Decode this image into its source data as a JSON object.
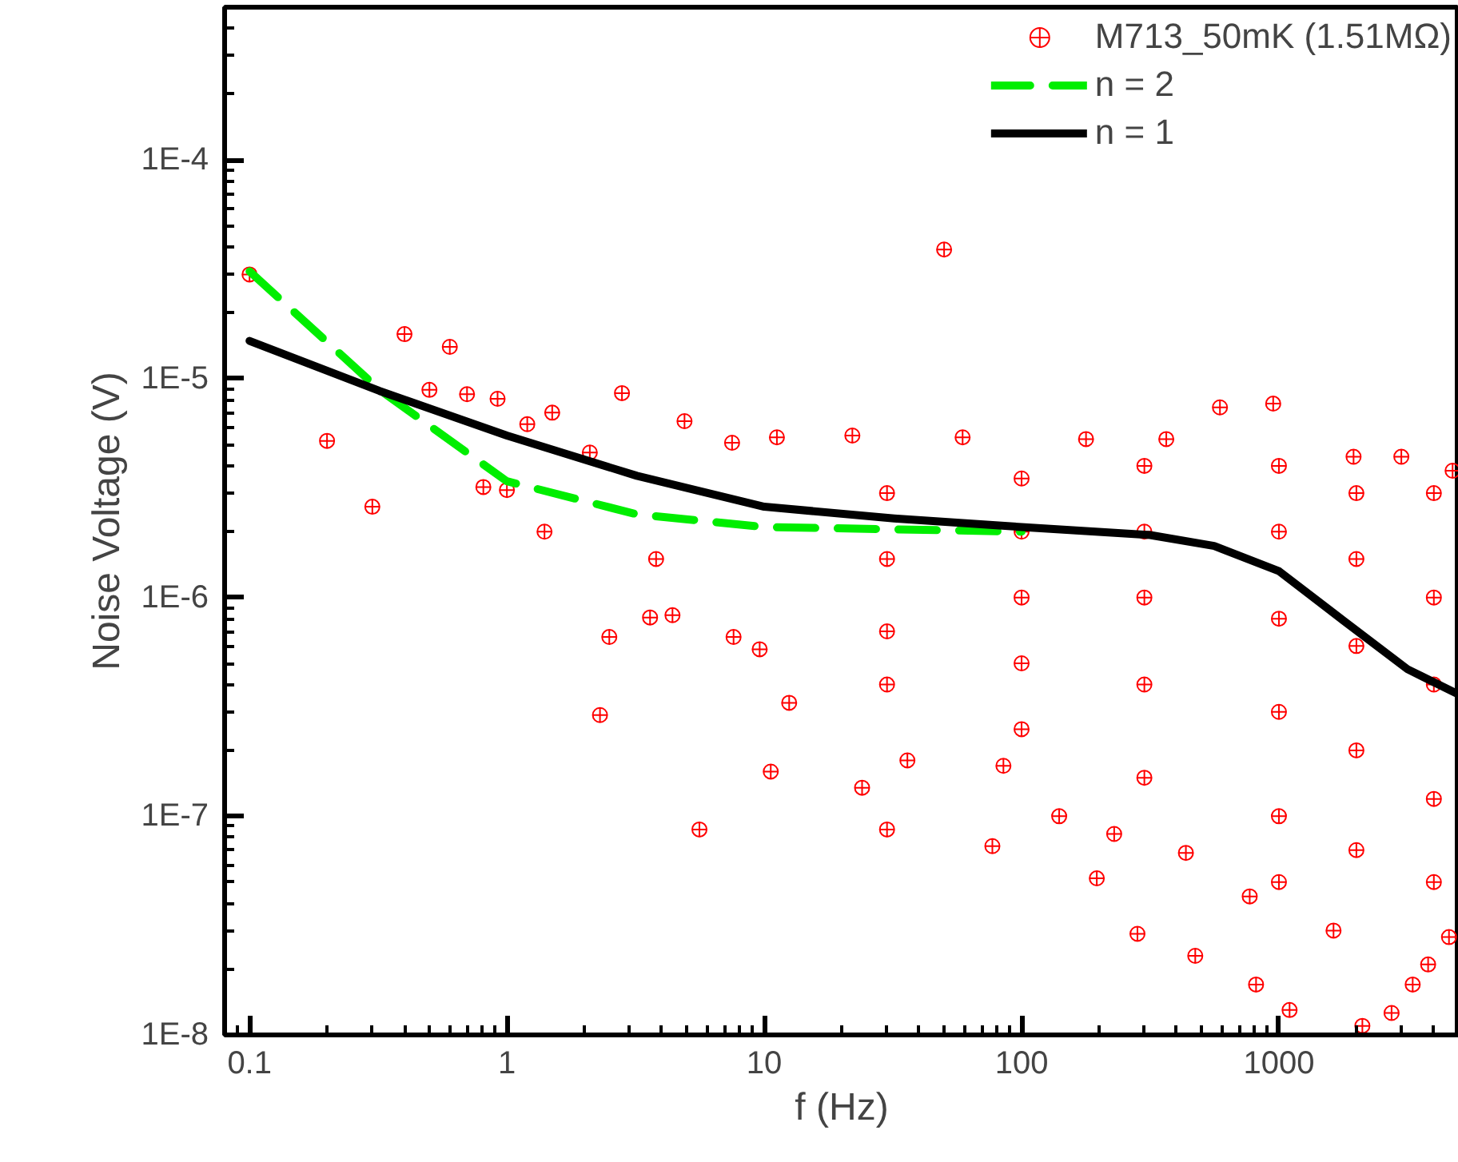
{
  "chart_data": {
    "type": "scatter",
    "xlabel": "f (Hz)",
    "ylabel": "Noise Voltage (V)",
    "log": "xy",
    "grid": false,
    "legend": "top right",
    "xlim": [
      0.08,
      5000
    ],
    "ylim": [
      1e-08,
      0.0005
    ],
    "xticks": [
      0.1,
      1,
      10,
      100,
      1000
    ],
    "yticks": [
      {
        "value": 1e-08,
        "label": "1E-8"
      },
      {
        "value": 1e-07,
        "label": "1E-7"
      },
      {
        "value": 1e-06,
        "label": "1E-6"
      },
      {
        "value": 1e-05,
        "label": "1E-5"
      },
      {
        "value": 0.0001,
        "label": "1E-4"
      }
    ],
    "series": [
      {
        "name": "M713_50mK (1.51MΩ)",
        "marker": "circle",
        "color": "#ff0000",
        "x": [
          0.1,
          0.2,
          0.3,
          0.4,
          0.5,
          0.6,
          0.7,
          0.92,
          1.0,
          0.81,
          1.2,
          1.5,
          1.4,
          2.1,
          2.5,
          2.3,
          2.8,
          3.6,
          3.8,
          4.4,
          4.9,
          5.6,
          7.5,
          7.6,
          9.6,
          10.6,
          11.2,
          12.5,
          22,
          24,
          30,
          36,
          50,
          59,
          77,
          85,
          140,
          178,
          196,
          229,
          282,
          365,
          435,
          473,
          590,
          770,
          815,
          950,
          1100,
          1630,
          1950,
          2110,
          2740,
          2990,
          3310,
          3800,
          4580,
          4730,
          30,
          30,
          30,
          30,
          100,
          100,
          100,
          100,
          100,
          300,
          300,
          300,
          300,
          300,
          1000,
          1000,
          1000,
          1000,
          1000,
          1000,
          2000,
          2000,
          2000,
          2000,
          2000,
          4000,
          4000,
          4000,
          4000,
          4000
        ],
        "values": [
          3e-05,
          5.2e-06,
          2.6e-06,
          1.6e-05,
          8.9e-06,
          1.4e-05,
          8.5e-06,
          8.1e-06,
          3.1e-06,
          3.2e-06,
          6.2e-06,
          7e-06,
          2e-06,
          4.6e-06,
          6.6e-07,
          2.9e-07,
          8.6e-06,
          8.1e-07,
          1.5e-06,
          8.3e-07,
          6.4e-06,
          8.7e-08,
          5.1e-06,
          6.6e-07,
          5.8e-07,
          1.6e-07,
          5.4e-06,
          3.3e-07,
          5.5e-06,
          1.35e-07,
          8.7e-08,
          1.8e-07,
          3.9e-05,
          5.4e-06,
          7.3e-08,
          1.7e-07,
          1e-07,
          5.3e-06,
          5.2e-08,
          8.3e-08,
          2.9e-08,
          5.3e-06,
          6.8e-08,
          2.3e-08,
          7.4e-06,
          4.3e-08,
          1.7e-08,
          7.7e-06,
          1.3e-08,
          3e-08,
          4.4e-06,
          1.1e-08,
          1.26e-08,
          4.4e-06,
          1.7e-08,
          2.1e-08,
          2.8e-08,
          3.8e-06,
          3e-06,
          1.5e-06,
          7e-07,
          4e-07,
          3.5e-06,
          2e-06,
          1e-06,
          5e-07,
          2.5e-07,
          4e-06,
          2e-06,
          1e-06,
          4e-07,
          1.5e-07,
          4e-06,
          2e-06,
          8e-07,
          3e-07,
          1e-07,
          5e-08,
          3e-06,
          1.5e-06,
          6e-07,
          2e-07,
          7e-08,
          3e-06,
          1e-06,
          4e-07,
          1.2e-07,
          5e-08
        ]
      },
      {
        "name": "n = 2",
        "type": "line",
        "line_style": "dashed",
        "color": "#00ee00",
        "x": [
          0.1,
          0.32,
          1,
          3.2,
          10,
          100
        ],
        "values": [
          3.1e-05,
          8.9e-06,
          3.4e-06,
          2.4e-06,
          2.1e-06,
          2e-06
        ]
      },
      {
        "name": "n = 1",
        "type": "line",
        "line_style": "solid",
        "color": "#000000",
        "x": [
          0.1,
          0.32,
          1,
          3.2,
          10,
          32,
          100,
          316,
          560,
          1000,
          1780,
          3160,
          5000
        ],
        "values": [
          1.49e-05,
          8.8e-06,
          5.5e-06,
          3.6e-06,
          2.6e-06,
          2.3e-06,
          2.1e-06,
          1.93e-06,
          1.72e-06,
          1.32e-06,
          7.85e-07,
          4.7e-07,
          3.6e-07
        ]
      }
    ]
  }
}
